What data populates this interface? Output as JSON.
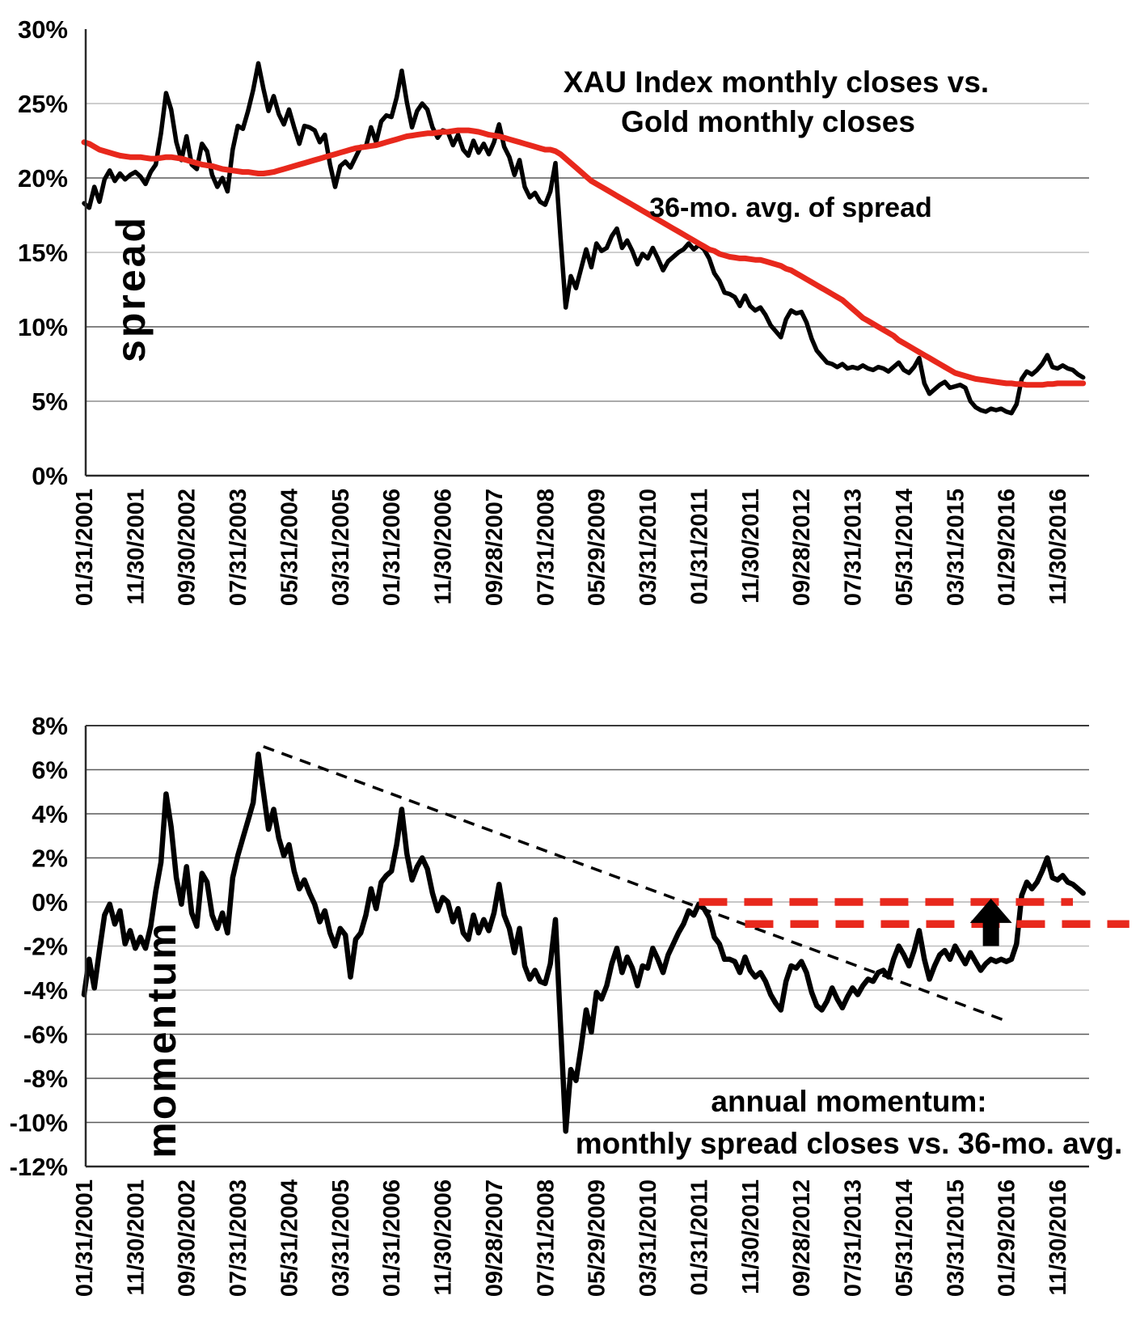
{
  "colors": {
    "line_black": "#000000",
    "accent_red": "#e8281c",
    "axis_word_gray": "#b5b5b5"
  },
  "chart_data": [
    {
      "type": "line",
      "name": "spread-chart",
      "title_line1": "XAU Index monthly closes vs.",
      "title_line2": "Gold monthly closes",
      "series_label": "36-mo. avg. of spread",
      "axis_word": "spread",
      "ylim": [
        0,
        30
      ],
      "y_ticks": [
        30,
        25,
        20,
        15,
        10,
        5,
        0
      ],
      "y_tick_labels": [
        "30%",
        "25%",
        "20%",
        "15%",
        "10%",
        "5%",
        "0%"
      ],
      "x_tick_step_months": 10,
      "x_tick_labels": [
        "01/31/2001",
        "11/30/2001",
        "09/30/2002",
        "07/31/2003",
        "05/31/2004",
        "03/31/2005",
        "01/31/2006",
        "11/30/2006",
        "09/28/2007",
        "07/31/2008",
        "05/29/2009",
        "03/31/2010",
        "01/31/2011",
        "11/30/2011",
        "09/28/2012",
        "07/31/2013",
        "05/31/2014",
        "03/31/2015",
        "01/29/2016",
        "11/30/2016"
      ],
      "months": 196,
      "series": [
        {
          "name": "spread",
          "color": "#000000",
          "values": [
            18.3,
            18.0,
            19.4,
            18.4,
            19.9,
            20.5,
            19.8,
            20.3,
            19.9,
            20.2,
            20.4,
            20.1,
            19.6,
            20.4,
            20.9,
            23.0,
            25.7,
            24.6,
            22.4,
            21.2,
            22.8,
            20.9,
            20.6,
            22.3,
            21.8,
            20.2,
            19.4,
            20.0,
            19.1,
            21.9,
            23.5,
            23.3,
            24.5,
            25.9,
            27.7,
            26.0,
            24.5,
            25.5,
            24.3,
            23.6,
            24.6,
            23.4,
            22.3,
            23.5,
            23.4,
            23.2,
            22.4,
            22.9,
            20.9,
            19.4,
            20.8,
            21.1,
            20.7,
            21.4,
            22.1,
            22.1,
            23.4,
            22.4,
            23.8,
            24.2,
            24.1,
            25.4,
            27.2,
            25.1,
            23.4,
            24.5,
            25.0,
            24.6,
            23.4,
            22.7,
            23.2,
            23.1,
            22.2,
            22.9,
            21.9,
            21.5,
            22.5,
            21.7,
            22.3,
            21.6,
            22.4,
            23.6,
            22.1,
            21.4,
            20.2,
            21.2,
            19.4,
            18.7,
            19.0,
            18.4,
            18.2,
            19.1,
            21.0,
            16.0,
            11.3,
            13.4,
            12.6,
            13.9,
            15.2,
            14.0,
            15.6,
            15.1,
            15.3,
            16.1,
            16.6,
            15.3,
            15.8,
            15.1,
            14.2,
            14.9,
            14.6,
            15.3,
            14.6,
            13.8,
            14.4,
            14.7,
            15.0,
            15.2,
            15.6,
            15.2,
            15.5,
            15.2,
            14.6,
            13.6,
            13.1,
            12.3,
            12.2,
            12.0,
            11.4,
            12.1,
            11.4,
            11.1,
            11.3,
            10.8,
            10.1,
            9.7,
            9.3,
            10.5,
            11.1,
            10.9,
            11.0,
            10.3,
            9.2,
            8.4,
            8.0,
            7.6,
            7.5,
            7.3,
            7.5,
            7.2,
            7.3,
            7.2,
            7.4,
            7.2,
            7.1,
            7.3,
            7.2,
            7.0,
            7.3,
            7.6,
            7.1,
            6.9,
            7.3,
            7.9,
            6.2,
            5.5,
            5.8,
            6.1,
            6.3,
            5.9,
            6.0,
            6.1,
            5.9,
            5.0,
            4.6,
            4.4,
            4.3,
            4.5,
            4.4,
            4.5,
            4.3,
            4.2,
            4.8,
            6.5,
            7.0,
            6.8,
            7.1,
            7.5,
            8.1,
            7.3,
            7.2,
            7.4,
            7.2,
            7.1,
            6.8,
            6.6
          ]
        },
        {
          "name": "36-mo. avg. of spread",
          "color": "#e8281c",
          "values": [
            22.4,
            22.3,
            22.1,
            21.9,
            21.8,
            21.7,
            21.6,
            21.5,
            21.45,
            21.4,
            21.4,
            21.4,
            21.35,
            21.3,
            21.3,
            21.35,
            21.4,
            21.4,
            21.35,
            21.3,
            21.2,
            21.1,
            21.0,
            20.9,
            20.85,
            20.8,
            20.7,
            20.6,
            20.55,
            20.5,
            20.45,
            20.4,
            20.4,
            20.35,
            20.3,
            20.3,
            20.35,
            20.4,
            20.5,
            20.6,
            20.7,
            20.8,
            20.9,
            21.0,
            21.1,
            21.2,
            21.3,
            21.4,
            21.5,
            21.6,
            21.7,
            21.8,
            21.9,
            22.0,
            22.05,
            22.1,
            22.15,
            22.2,
            22.3,
            22.4,
            22.5,
            22.6,
            22.7,
            22.8,
            22.85,
            22.9,
            22.95,
            23.0,
            23.0,
            23.05,
            23.1,
            23.1,
            23.15,
            23.2,
            23.2,
            23.2,
            23.15,
            23.1,
            23.0,
            22.9,
            22.85,
            22.8,
            22.7,
            22.6,
            22.5,
            22.4,
            22.3,
            22.2,
            22.1,
            22.0,
            21.9,
            21.9,
            21.8,
            21.6,
            21.3,
            21.0,
            20.7,
            20.4,
            20.1,
            19.8,
            19.6,
            19.4,
            19.2,
            19.0,
            18.8,
            18.6,
            18.4,
            18.2,
            18.0,
            17.8,
            17.6,
            17.4,
            17.2,
            17.0,
            16.8,
            16.6,
            16.4,
            16.2,
            16.0,
            15.8,
            15.6,
            15.4,
            15.2,
            15.1,
            14.9,
            14.8,
            14.7,
            14.65,
            14.6,
            14.6,
            14.55,
            14.5,
            14.5,
            14.4,
            14.3,
            14.2,
            14.1,
            13.9,
            13.8,
            13.6,
            13.4,
            13.2,
            13.0,
            12.8,
            12.6,
            12.4,
            12.2,
            12.0,
            11.8,
            11.5,
            11.2,
            10.9,
            10.6,
            10.4,
            10.2,
            10.0,
            9.8,
            9.6,
            9.4,
            9.1,
            8.9,
            8.7,
            8.5,
            8.3,
            8.1,
            7.9,
            7.7,
            7.5,
            7.3,
            7.1,
            6.9,
            6.8,
            6.7,
            6.6,
            6.5,
            6.45,
            6.4,
            6.35,
            6.3,
            6.25,
            6.2,
            6.2,
            6.15,
            6.15,
            6.1,
            6.1,
            6.1,
            6.1,
            6.15,
            6.15,
            6.2,
            6.2,
            6.2,
            6.2,
            6.2,
            6.2
          ]
        }
      ]
    },
    {
      "type": "line",
      "name": "momentum-chart",
      "annotation_line1": "annual momentum:",
      "annotation_line2": "monthly spread closes vs. 36-mo. avg.",
      "axis_word": "momentum",
      "ylim": [
        -12,
        8
      ],
      "y_ticks": [
        8,
        6,
        4,
        2,
        0,
        -2,
        -4,
        -6,
        -8,
        -10,
        -12
      ],
      "y_tick_labels": [
        "8%",
        "6%",
        "4%",
        "2%",
        "0%",
        "-2%",
        "-4%",
        "-6%",
        "-8%",
        "-10%",
        "-12%"
      ],
      "x_tick_step_months": 10,
      "x_tick_labels": [
        "01/31/2001",
        "11/30/2001",
        "09/30/2002",
        "07/31/2003",
        "05/31/2004",
        "03/31/2005",
        "01/31/2006",
        "11/30/2006",
        "09/28/2007",
        "07/31/2008",
        "05/29/2009",
        "03/31/2010",
        "01/31/2011",
        "11/30/2011",
        "09/28/2012",
        "07/31/2013",
        "05/31/2014",
        "03/31/2015",
        "01/29/2016",
        "11/30/2016"
      ],
      "months": 196,
      "series": [
        {
          "name": "annual momentum",
          "color": "#000000",
          "values": [
            -4.2,
            -2.6,
            -3.9,
            -2.2,
            -0.6,
            -0.1,
            -1.0,
            -0.4,
            -1.9,
            -1.3,
            -2.1,
            -1.6,
            -2.1,
            -1.1,
            0.5,
            1.8,
            4.9,
            3.4,
            1.1,
            -0.1,
            1.6,
            -0.5,
            -1.1,
            1.3,
            0.9,
            -0.6,
            -1.2,
            -0.5,
            -1.4,
            1.1,
            2.1,
            2.9,
            3.7,
            4.5,
            6.7,
            5.0,
            3.3,
            4.2,
            2.9,
            2.1,
            2.6,
            1.4,
            0.6,
            1.0,
            0.4,
            -0.1,
            -0.9,
            -0.4,
            -1.4,
            -2.0,
            -1.2,
            -1.5,
            -3.4,
            -1.7,
            -1.4,
            -0.6,
            0.6,
            -0.3,
            0.9,
            1.2,
            1.4,
            2.6,
            4.2,
            2.2,
            1.0,
            1.6,
            2.0,
            1.5,
            0.4,
            -0.4,
            0.2,
            0.0,
            -0.9,
            -0.3,
            -1.4,
            -1.7,
            -0.6,
            -1.4,
            -0.8,
            -1.3,
            -0.5,
            0.8,
            -0.6,
            -1.2,
            -2.3,
            -1.2,
            -2.9,
            -3.5,
            -3.1,
            -3.6,
            -3.7,
            -2.8,
            -0.8,
            -5.6,
            -10.4,
            -7.6,
            -8.1,
            -6.6,
            -4.9,
            -5.9,
            -4.1,
            -4.4,
            -3.8,
            -2.8,
            -2.1,
            -3.2,
            -2.5,
            -3.0,
            -3.8,
            -2.9,
            -3.0,
            -2.1,
            -2.6,
            -3.2,
            -2.4,
            -1.9,
            -1.4,
            -1.0,
            -0.4,
            -0.6,
            -0.1,
            -0.3,
            -0.7,
            -1.6,
            -1.9,
            -2.6,
            -2.6,
            -2.7,
            -3.2,
            -2.5,
            -3.1,
            -3.4,
            -3.2,
            -3.6,
            -4.2,
            -4.6,
            -4.9,
            -3.6,
            -2.9,
            -3.0,
            -2.7,
            -3.2,
            -4.1,
            -4.7,
            -4.9,
            -4.5,
            -3.9,
            -4.4,
            -4.8,
            -4.3,
            -3.9,
            -4.2,
            -3.8,
            -3.5,
            -3.6,
            -3.2,
            -3.1,
            -3.4,
            -2.6,
            -2.0,
            -2.4,
            -2.9,
            -2.2,
            -1.3,
            -2.6,
            -3.5,
            -2.9,
            -2.4,
            -2.2,
            -2.6,
            -2.0,
            -2.4,
            -2.8,
            -2.3,
            -2.7,
            -3.1,
            -2.8,
            -2.6,
            -2.7,
            -2.6,
            -2.7,
            -2.6,
            -1.9,
            0.3,
            0.9,
            0.6,
            0.9,
            1.4,
            2.0,
            1.1,
            1.0,
            1.2,
            0.9,
            0.8,
            0.6,
            0.4
          ]
        }
      ],
      "trendline": {
        "style": "dashed",
        "color": "#000000",
        "from_month": 35,
        "from_value": 7.05,
        "to_month": 180,
        "to_value": -5.4
      },
      "ref_lines": [
        {
          "style": "dashed",
          "color": "#e8281c",
          "value": 0.0,
          "from_month": 120,
          "to_month": 193
        },
        {
          "style": "dashed",
          "color": "#e8281c",
          "value": -1.0,
          "from_month": 129,
          "to_month": 204
        }
      ],
      "arrow": {
        "direction": "up",
        "color": "#000000",
        "month": 177,
        "tip_value": 0.15,
        "base_value": -2.0
      }
    }
  ]
}
